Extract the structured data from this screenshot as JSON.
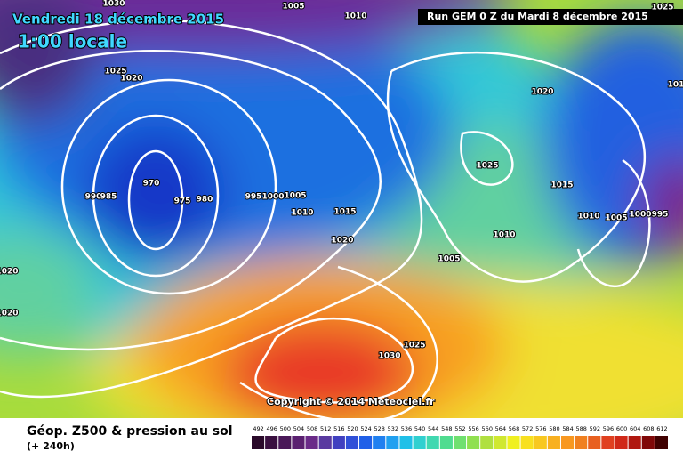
{
  "header": {
    "date": "Vendredi 18 décembre 2015",
    "time": "1:00 locale",
    "run": "Run GEM 0 Z du Mardi 8 décembre 2015"
  },
  "isobar_labels": [
    "1030",
    "1005",
    "1010",
    "1025",
    "1025",
    "1020",
    "1020",
    "1025",
    "970",
    "990",
    "985",
    "975",
    "980",
    "995",
    "1000",
    "1005",
    "1010",
    "1015",
    "1020",
    "1015",
    "1010",
    "1005",
    "1000",
    "995",
    "1010",
    "1005",
    "1020",
    "1020",
    "1025",
    "1030",
    "101"
  ],
  "copyright": "Copyright © 2014 Meteociel.fr",
  "legend": {
    "title": "Géop. Z500 & pression au sol",
    "subtitle": "(+ 240h)",
    "scale": [
      492,
      496,
      500,
      504,
      508,
      512,
      516,
      520,
      524,
      528,
      532,
      536,
      540,
      544,
      548,
      552,
      556,
      560,
      564,
      568,
      572,
      576,
      580,
      584,
      588,
      592,
      596,
      600,
      604,
      608,
      612
    ]
  }
}
